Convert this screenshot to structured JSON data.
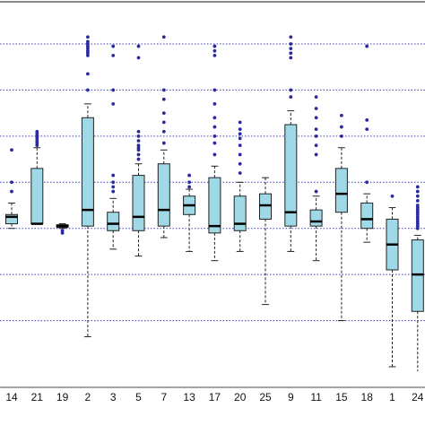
{
  "chart_data": {
    "type": "box",
    "title": "",
    "xlabel": "",
    "ylabel": "",
    "grid": "horizontal dotted",
    "ylim": [
      0,
      7.6
    ],
    "gridlines": [
      1,
      2,
      3,
      4,
      5,
      6,
      7
    ],
    "colors": {
      "box_fill": "#9fd8e6",
      "outlier": "#2a2aa0",
      "grid": "#3d3db8",
      "frame": "#888888"
    },
    "categories": [
      "14",
      "21",
      "19",
      "2",
      "3",
      "5",
      "7",
      "13",
      "17",
      "20",
      "25",
      "9",
      "11",
      "15",
      "18",
      "1",
      "24"
    ],
    "boxes": [
      {
        "label": "14",
        "whisker_low": 3.0,
        "q1": 3.1,
        "median": 3.25,
        "q3": 3.3,
        "whisker_high": 3.55,
        "outliers": [
          3.8,
          4.0,
          4.7
        ]
      },
      {
        "label": "21",
        "whisker_low": 3.1,
        "q1": 3.1,
        "median": 3.1,
        "q3": 4.3,
        "whisker_high": 4.75,
        "outliers": [
          4.8,
          4.85,
          4.9,
          4.95,
          5.0,
          5.05,
          5.1
        ]
      },
      {
        "label": "19",
        "whisker_low": 3.0,
        "q1": 3.02,
        "median": 3.05,
        "q3": 3.08,
        "whisker_high": 3.1,
        "outliers": [
          2.9,
          2.95
        ]
      },
      {
        "label": "2",
        "whisker_low": 0.65,
        "q1": 3.05,
        "median": 3.4,
        "q3": 5.4,
        "whisker_high": 5.7,
        "outliers": [
          6.0,
          6.35,
          6.75,
          6.8,
          6.85,
          6.9,
          6.95,
          7.0,
          7.05,
          7.15
        ]
      },
      {
        "label": "3",
        "whisker_low": 2.55,
        "q1": 2.95,
        "median": 3.1,
        "q3": 3.35,
        "whisker_high": 3.65,
        "outliers": [
          3.8,
          3.9,
          4.0,
          4.15,
          5.7,
          6.0,
          6.75,
          6.95
        ]
      },
      {
        "label": "5",
        "whisker_low": 2.4,
        "q1": 2.95,
        "median": 3.25,
        "q3": 4.15,
        "whisker_high": 4.4,
        "outliers": [
          4.5,
          4.6,
          4.7,
          4.75,
          4.8,
          4.9,
          5.0,
          5.1,
          6.7,
          6.95
        ]
      },
      {
        "label": "7",
        "whisker_low": 2.8,
        "q1": 3.05,
        "median": 3.4,
        "q3": 4.4,
        "whisker_high": 4.7,
        "outliers": [
          4.85,
          5.1,
          5.3,
          5.5,
          5.8,
          6.0,
          7.15
        ]
      },
      {
        "label": "13",
        "whisker_low": 2.5,
        "q1": 3.3,
        "median": 3.5,
        "q3": 3.7,
        "whisker_high": 3.85,
        "outliers": [
          3.9,
          4.0,
          4.15
        ]
      },
      {
        "label": "17",
        "whisker_low": 2.3,
        "q1": 2.9,
        "median": 3.05,
        "q3": 4.1,
        "whisker_high": 4.35,
        "outliers": [
          4.6,
          4.85,
          5.0,
          5.2,
          5.4,
          5.7,
          6.0,
          6.75,
          6.85,
          6.95
        ]
      },
      {
        "label": "20",
        "whisker_low": 2.5,
        "q1": 2.95,
        "median": 3.1,
        "q3": 3.7,
        "whisker_high": 4.0,
        "outliers": [
          4.2,
          4.4,
          4.6,
          4.8,
          4.95,
          5.05,
          5.15,
          5.3
        ]
      },
      {
        "label": "25",
        "whisker_low": 1.35,
        "q1": 3.2,
        "median": 3.5,
        "q3": 3.75,
        "whisker_high": 4.1,
        "outliers": []
      },
      {
        "label": "9",
        "whisker_low": 2.5,
        "q1": 3.05,
        "median": 3.35,
        "q3": 5.25,
        "whisker_high": 5.55,
        "outliers": [
          5.85,
          6.0,
          6.7,
          6.8,
          6.9,
          7.0,
          7.15
        ]
      },
      {
        "label": "11",
        "whisker_low": 2.3,
        "q1": 3.05,
        "median": 3.15,
        "q3": 3.4,
        "whisker_high": 3.7,
        "outliers": [
          3.8,
          4.6,
          4.8,
          5.0,
          5.15,
          5.4,
          5.6,
          5.85
        ]
      },
      {
        "label": "15",
        "whisker_low": 1.0,
        "q1": 3.35,
        "median": 3.75,
        "q3": 4.3,
        "whisker_high": 4.75,
        "outliers": [
          5.0,
          5.2,
          5.45
        ]
      },
      {
        "label": "18",
        "whisker_low": 2.7,
        "q1": 3.0,
        "median": 3.2,
        "q3": 3.55,
        "whisker_high": 3.75,
        "outliers": [
          4.0,
          5.15,
          5.35,
          6.95
        ]
      },
      {
        "label": "1",
        "whisker_low": 0.0,
        "q1": 2.1,
        "median": 2.65,
        "q3": 3.2,
        "whisker_high": 3.45,
        "outliers": [
          3.7
        ]
      },
      {
        "label": "24",
        "whisker_low": -0.1,
        "q1": 1.2,
        "median": 2.0,
        "q3": 2.75,
        "whisker_high": 2.85,
        "outliers": [
          3.0,
          3.05,
          3.1,
          3.15,
          3.2,
          3.25,
          3.3,
          3.35,
          3.4,
          3.45,
          3.5,
          3.6,
          3.7,
          3.8,
          3.9
        ]
      }
    ]
  }
}
